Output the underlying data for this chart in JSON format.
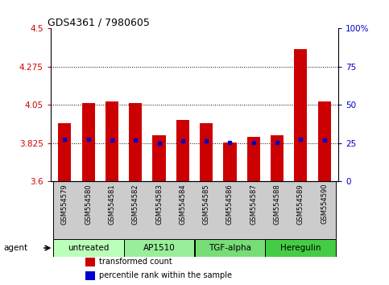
{
  "title": "GDS4361 / 7980605",
  "samples": [
    "GSM554579",
    "GSM554580",
    "GSM554581",
    "GSM554582",
    "GSM554583",
    "GSM554584",
    "GSM554585",
    "GSM554586",
    "GSM554587",
    "GSM554588",
    "GSM554589",
    "GSM554590"
  ],
  "bar_values": [
    3.94,
    4.06,
    4.07,
    4.06,
    3.87,
    3.96,
    3.94,
    3.83,
    3.86,
    3.87,
    4.38,
    4.07
  ],
  "percentile_values": [
    3.845,
    3.845,
    3.84,
    3.84,
    3.825,
    3.835,
    3.835,
    3.83,
    3.83,
    3.83,
    3.845,
    3.84
  ],
  "bar_color": "#cc0000",
  "dot_color": "#0000cc",
  "ymin": 3.6,
  "ymax": 4.5,
  "yticks": [
    3.6,
    3.825,
    4.05,
    4.275,
    4.5
  ],
  "ytick_labels": [
    "3.6",
    "3.825",
    "4.05",
    "4.275",
    "4.5"
  ],
  "right_yticks": [
    0,
    25,
    50,
    75,
    100
  ],
  "right_ytick_labels": [
    "0",
    "25",
    "50",
    "75",
    "100%"
  ],
  "dotted_lines": [
    3.825,
    4.05,
    4.275
  ],
  "groups": [
    {
      "label": "untreated",
      "start": 0,
      "end": 3,
      "color": "#bbffbb"
    },
    {
      "label": "AP1510",
      "start": 3,
      "end": 6,
      "color": "#99ee99"
    },
    {
      "label": "TGF-alpha",
      "start": 6,
      "end": 9,
      "color": "#77dd77"
    },
    {
      "label": "Heregulin",
      "start": 9,
      "end": 12,
      "color": "#44cc44"
    }
  ],
  "legend_items": [
    {
      "label": "transformed count",
      "color": "#cc0000"
    },
    {
      "label": "percentile rank within the sample",
      "color": "#0000cc"
    }
  ],
  "bar_width": 0.55,
  "sample_bg_color": "#cccccc",
  "background_color": "#ffffff"
}
